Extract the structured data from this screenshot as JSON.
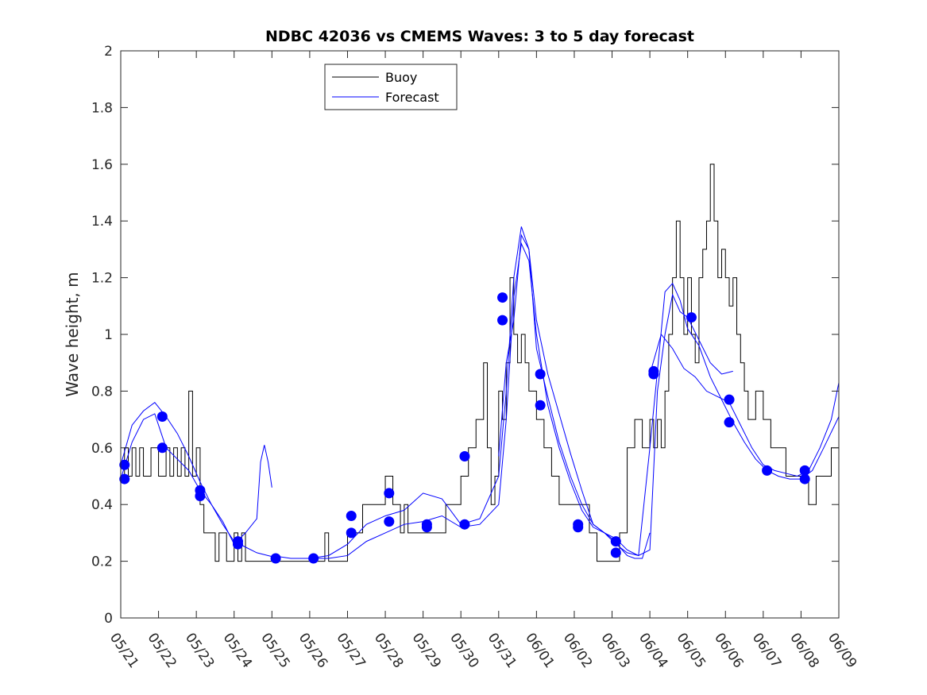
{
  "chart_data": {
    "type": "line",
    "title": "NDBC 42036 vs CMEMS Waves: 3 to 5 day forecast",
    "ylabel": "Wave height, m",
    "xlabel": "",
    "xlim": [
      "05/21",
      "06/09"
    ],
    "ylim": [
      0,
      2
    ],
    "yticks": [
      0,
      0.2,
      0.4,
      0.6,
      0.8,
      1,
      1.2,
      1.4,
      1.6,
      1.8,
      2
    ],
    "yticklabels": [
      "0",
      "0.2",
      "0.4",
      "0.6",
      "0.8",
      "1",
      "1.2",
      "1.4",
      "1.6",
      "1.8",
      "2"
    ],
    "xticklabels": [
      "05/21",
      "05/22",
      "05/23",
      "05/24",
      "05/25",
      "05/26",
      "05/27",
      "05/28",
      "05/29",
      "05/30",
      "05/31",
      "06/01",
      "06/02",
      "06/03",
      "06/04",
      "06/05",
      "06/06",
      "06/07",
      "06/08",
      "06/09"
    ],
    "grid": false,
    "legend": {
      "placement": "top-left",
      "entries": [
        {
          "label": "Buoy",
          "color": "#000000"
        },
        {
          "label": "Forecast",
          "color": "#0000ff"
        }
      ]
    },
    "colors": {
      "buoy": "#000000",
      "forecast": "#0000ff"
    },
    "buoy": {
      "name": "Buoy",
      "x": [
        0,
        0.1,
        0.2,
        0.3,
        0.4,
        0.5,
        0.6,
        0.8,
        1,
        1.2,
        1.3,
        1.4,
        1.5,
        1.6,
        1.7,
        1.8,
        1.9,
        2,
        2.1,
        2.2,
        2.3,
        2.4,
        2.5,
        2.6,
        2.8,
        3,
        3.1,
        3.2,
        3.3,
        3.5,
        3.8,
        4,
        4.1,
        4.3,
        4.6,
        5,
        5.2,
        5.3,
        5.4,
        5.5,
        5.6,
        5.8,
        6,
        6.2,
        6.4,
        6.6,
        6.8,
        7,
        7.2,
        7.4,
        7.5,
        7.6,
        7.8,
        8,
        8.2,
        8.4,
        8.6,
        8.8,
        9,
        9.2,
        9.4,
        9.6,
        9.7,
        9.8,
        9.9,
        10,
        10.1,
        10.2,
        10.3,
        10.4,
        10.5,
        10.6,
        10.7,
        10.8,
        10.9,
        11,
        11.1,
        11.2,
        11.4,
        11.6,
        11.8,
        12,
        12.2,
        12.4,
        12.6,
        12.8,
        13,
        13.2,
        13.4,
        13.6,
        13.8,
        14,
        14.1,
        14.2,
        14.3,
        14.4,
        14.5,
        14.6,
        14.7,
        14.8,
        14.9,
        15,
        15.1,
        15.2,
        15.3,
        15.4,
        15.5,
        15.6,
        15.7,
        15.8,
        15.9,
        16,
        16.1,
        16.2,
        16.3,
        16.4,
        16.5,
        16.6,
        16.8,
        17,
        17.2,
        17.4,
        17.6,
        17.8,
        18,
        18.2,
        18.4,
        18.6,
        18.8,
        19
      ],
      "values": [
        0.5,
        0.6,
        0.5,
        0.6,
        0.5,
        0.6,
        0.5,
        0.6,
        0.5,
        0.6,
        0.5,
        0.6,
        0.5,
        0.6,
        0.5,
        0.8,
        0.5,
        0.6,
        0.4,
        0.3,
        0.3,
        0.3,
        0.2,
        0.3,
        0.2,
        0.3,
        0.2,
        0.3,
        0.2,
        0.2,
        0.2,
        0.2,
        0.2,
        0.2,
        0.2,
        0.2,
        0.2,
        0.2,
        0.3,
        0.2,
        0.2,
        0.2,
        0.3,
        0.3,
        0.4,
        0.4,
        0.4,
        0.5,
        0.4,
        0.3,
        0.4,
        0.3,
        0.3,
        0.3,
        0.3,
        0.3,
        0.4,
        0.4,
        0.5,
        0.6,
        0.7,
        0.9,
        0.6,
        0.4,
        0.5,
        0.8,
        0.7,
        0.9,
        1.2,
        1.0,
        0.9,
        1.0,
        0.9,
        0.8,
        0.8,
        0.7,
        0.7,
        0.6,
        0.5,
        0.4,
        0.4,
        0.4,
        0.4,
        0.3,
        0.2,
        0.2,
        0.2,
        0.3,
        0.6,
        0.7,
        0.6,
        0.7,
        0.6,
        0.7,
        0.6,
        0.8,
        1.0,
        1.2,
        1.4,
        1.2,
        1.0,
        1.2,
        1.0,
        0.9,
        1.2,
        1.3,
        1.4,
        1.6,
        1.4,
        1.2,
        1.3,
        1.2,
        1.1,
        1.2,
        1.0,
        0.9,
        0.8,
        0.7,
        0.8,
        0.7,
        0.6,
        0.6,
        0.5,
        0.5,
        0.5,
        0.4,
        0.5,
        0.5,
        0.6,
        0.7
      ]
    },
    "forecast_series": [
      {
        "x": [
          0,
          0.3,
          0.6,
          0.9,
          1.2,
          1.5,
          1.8,
          2.1,
          2.4,
          2.7,
          3,
          3.3,
          3.6,
          3.9,
          4.2
        ],
        "values": [
          0.54,
          0.68,
          0.73,
          0.76,
          0.71,
          0.65,
          0.57,
          0.48,
          0.4,
          0.33,
          0.27,
          0.25,
          0.23,
          0.22,
          0.21
        ]
      },
      {
        "x": [
          0,
          0.3,
          0.6,
          0.9,
          1.2,
          1.5,
          1.8,
          2.1,
          2.4,
          2.7,
          3,
          3.3,
          3.6,
          3.7,
          3.8,
          3.9,
          4
        ],
        "values": [
          0.49,
          0.62,
          0.7,
          0.72,
          0.6,
          0.56,
          0.52,
          0.45,
          0.4,
          0.34,
          0.26,
          0.3,
          0.35,
          0.55,
          0.61,
          0.55,
          0.46
        ]
      },
      {
        "x": [
          4,
          4.5,
          5,
          5.5,
          6,
          6.5,
          7,
          7.5,
          8,
          8.5,
          9,
          9.5,
          10,
          10.2,
          10.4,
          10.6,
          10.8,
          11,
          11.3,
          11.6,
          11.9,
          12.2,
          12.5,
          12.8,
          13,
          13.2,
          13.4,
          13.6,
          13.8,
          14
        ],
        "values": [
          0.22,
          0.21,
          0.21,
          0.22,
          0.26,
          0.33,
          0.36,
          0.38,
          0.44,
          0.42,
          0.33,
          0.35,
          0.5,
          0.8,
          1.2,
          1.38,
          1.3,
          1.05,
          0.86,
          0.72,
          0.58,
          0.45,
          0.33,
          0.3,
          0.28,
          0.25,
          0.22,
          0.21,
          0.21,
          0.3
        ]
      },
      {
        "x": [
          5,
          5.5,
          6,
          6.5,
          7,
          7.5,
          8,
          8.5,
          9,
          9.5,
          10,
          10.2,
          10.4,
          10.6,
          10.8,
          11,
          11.3,
          11.6,
          11.9,
          12.2,
          12.5,
          12.8,
          13.1,
          13.4,
          13.7,
          14,
          14.2,
          14.4,
          14.6,
          14.8,
          15,
          15.3,
          15.6,
          15.9,
          16.2
        ],
        "values": [
          0.21,
          0.21,
          0.22,
          0.27,
          0.3,
          0.33,
          0.34,
          0.36,
          0.32,
          0.33,
          0.4,
          0.7,
          1.13,
          1.32,
          1.26,
          1.0,
          0.75,
          0.6,
          0.48,
          0.38,
          0.32,
          0.3,
          0.26,
          0.23,
          0.22,
          0.24,
          0.8,
          1.0,
          1.14,
          1.08,
          1.06,
          0.98,
          0.9,
          0.86,
          0.87
        ]
      },
      {
        "x": [
          10,
          10.2,
          10.4,
          10.6,
          10.8,
          11,
          11.3,
          11.6,
          11.9,
          12.2,
          12.5,
          12.8,
          13.1,
          13.4,
          13.7,
          14,
          14.2,
          14.4,
          14.6,
          14.8,
          15,
          15.3,
          15.6,
          15.9,
          16.2,
          16.5,
          16.8,
          17.1,
          17.4,
          17.7,
          18,
          18.3,
          18.6,
          19
        ],
        "values": [
          0.57,
          0.9,
          1.05,
          1.35,
          1.3,
          0.95,
          0.78,
          0.62,
          0.5,
          0.4,
          0.33,
          0.3,
          0.28,
          0.24,
          0.22,
          0.6,
          0.87,
          1.15,
          1.18,
          1.12,
          1.02,
          0.96,
          0.85,
          0.77,
          0.69,
          0.62,
          0.56,
          0.52,
          0.5,
          0.49,
          0.49,
          0.52,
          0.6,
          0.71
        ]
      },
      {
        "x": [
          14,
          14.3,
          14.6,
          14.9,
          15.2,
          15.5,
          15.8,
          16.1,
          16.4,
          16.7,
          17,
          17.3,
          17.6,
          17.9,
          18.2,
          18.5,
          18.8,
          19
        ],
        "values": [
          0.86,
          1.0,
          0.95,
          0.88,
          0.85,
          0.8,
          0.78,
          0.76,
          0.68,
          0.6,
          0.54,
          0.52,
          0.51,
          0.5,
          0.52,
          0.6,
          0.7,
          0.83
        ]
      }
    ],
    "forecast_markers": {
      "x": [
        0.1,
        0.1,
        1.1,
        1.1,
        2.1,
        2.1,
        3.1,
        3.1,
        4.1,
        5.1,
        6.1,
        6.1,
        7.1,
        7.1,
        8.1,
        8.1,
        9.1,
        9.1,
        10.1,
        10.1,
        11.1,
        11.1,
        12.1,
        12.1,
        13.1,
        13.1,
        14.1,
        14.1,
        15.1,
        16.1,
        16.1,
        17.1,
        18.1,
        18.1
      ],
      "values": [
        0.54,
        0.49,
        0.71,
        0.6,
        0.45,
        0.43,
        0.27,
        0.26,
        0.21,
        0.21,
        0.36,
        0.3,
        0.44,
        0.34,
        0.33,
        0.32,
        0.57,
        0.33,
        1.13,
        1.05,
        0.86,
        0.75,
        0.33,
        0.32,
        0.27,
        0.23,
        0.87,
        0.86,
        1.06,
        0.77,
        0.69,
        0.52,
        0.52,
        0.49
      ]
    }
  }
}
